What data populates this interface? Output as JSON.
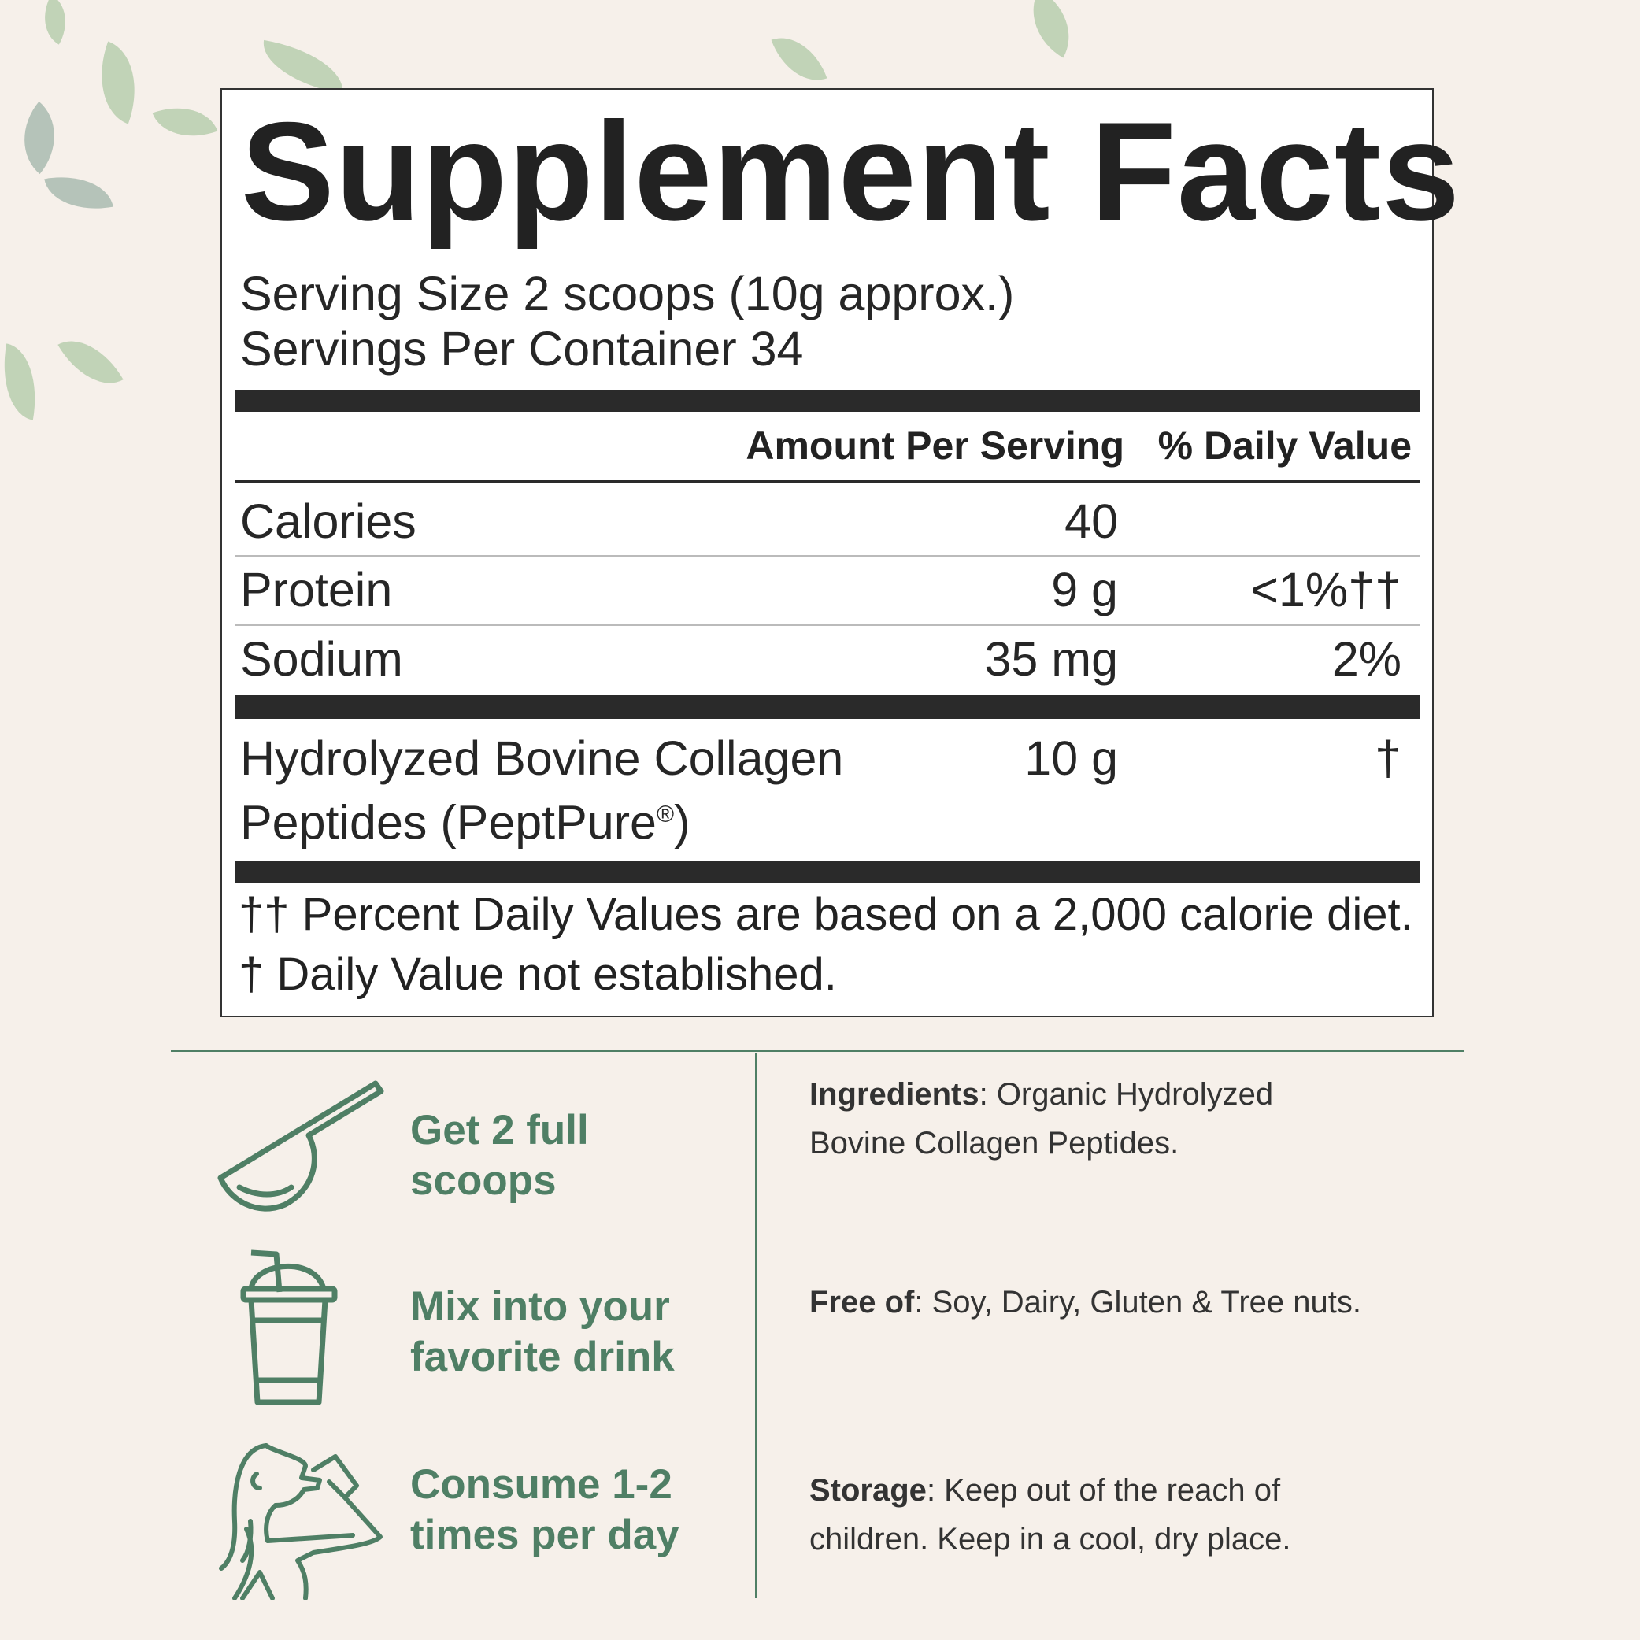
{
  "title": "Supplement Facts",
  "serving_size": "Serving Size 2 scoops (10g approx.)",
  "servings_per_container": "Servings Per Container 34",
  "headers": {
    "amount": "Amount Per Serving",
    "dv": "% Daily Value"
  },
  "rows": [
    {
      "name": "Calories",
      "amount": "40",
      "dv": ""
    },
    {
      "name": "Protein",
      "amount": "9 g",
      "dv": "<1%††"
    },
    {
      "name": "Sodium",
      "amount": "35 mg",
      "dv": "2%"
    }
  ],
  "collagen": {
    "line1": "Hydrolyzed Bovine Collagen",
    "line2": "Peptides (PeptPure",
    "reg": "®",
    "line2_end": ")",
    "amount": "10 g",
    "dv": "†"
  },
  "footnotes": [
    "†† Percent Daily Values are based on a 2,000 calorie diet.",
    "† Daily Value not established."
  ],
  "steps": [
    {
      "icon": "scoop-icon",
      "line1": "Get 2 full",
      "line2": "scoops"
    },
    {
      "icon": "drink-cup-icon",
      "line1": "Mix into your",
      "line2": "favorite drink"
    },
    {
      "icon": "woman-drinking-icon",
      "line1": "Consume 1-2",
      "line2": "times per day"
    }
  ],
  "info": {
    "ingredients_label": "Ingredients",
    "ingredients_line1": ": Organic Hydrolyzed",
    "ingredients_line2": "Bovine Collagen Peptides.",
    "free_label": "Free of",
    "free_text": ": Soy, Dairy, Gluten & Tree nuts.",
    "storage_label": "Storage",
    "storage_line1": ": Keep out of the reach of",
    "storage_line2": "children. Keep in a cool, dry place."
  },
  "colors": {
    "accent": "#4f7f65",
    "background": "#f6f0ea",
    "rule": "#2a2a2a"
  }
}
